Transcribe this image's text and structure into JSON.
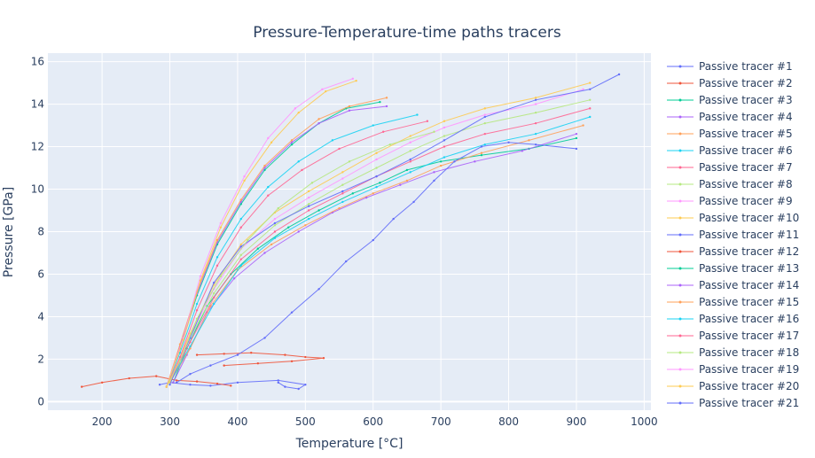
{
  "chart_data": {
    "type": "line",
    "title": "Pressure-Temperature-time paths tracers",
    "xlabel": "Temperature [°C]",
    "ylabel": "Pressure [GPa]",
    "xlim": [
      120,
      1010
    ],
    "ylim": [
      -0.4,
      16.4
    ],
    "x_ticks": [
      200,
      300,
      400,
      500,
      600,
      700,
      800,
      900,
      1000
    ],
    "y_ticks": [
      0,
      2,
      4,
      6,
      8,
      10,
      12,
      14,
      16
    ],
    "grid": true,
    "plot_bg": "#e5ecf6",
    "legend_position": "right",
    "colors": [
      "#636efa",
      "#ef553b",
      "#00cc96",
      "#ab63fa",
      "#ffa15a",
      "#19d3f3",
      "#ff6692",
      "#b6e880",
      "#ff97ff",
      "#fecb52"
    ],
    "series": [
      {
        "name": "Passive tracer #1",
        "x": [
          285,
          300,
          330,
          360,
          400,
          460,
          500,
          490,
          470,
          460
        ],
        "y": [
          0.8,
          0.9,
          0.8,
          0.75,
          0.9,
          1.0,
          0.8,
          0.6,
          0.7,
          0.9
        ]
      },
      {
        "name": "Passive tracer #2",
        "x": [
          170,
          200,
          240,
          280,
          310,
          340,
          370,
          390
        ],
        "y": [
          0.7,
          0.9,
          1.1,
          1.2,
          1.0,
          0.95,
          0.85,
          0.75
        ]
      },
      {
        "name": "Passive tracer #3",
        "x": [
          305,
          325,
          355,
          390,
          430,
          475,
          520,
          570,
          610,
          650,
          700,
          760,
          830,
          900
        ],
        "y": [
          0.9,
          2.5,
          4.5,
          6.0,
          7.2,
          8.2,
          9.0,
          9.8,
          10.3,
          10.9,
          11.3,
          11.6,
          11.9,
          12.4
        ]
      },
      {
        "name": "Passive tracer #4",
        "x": [
          305,
          325,
          355,
          395,
          440,
          490,
          540,
          590,
          640,
          690,
          750,
          820,
          900
        ],
        "y": [
          0.9,
          2.2,
          4.2,
          5.8,
          7.0,
          8.0,
          8.9,
          9.6,
          10.2,
          10.8,
          11.3,
          11.8,
          12.6
        ]
      },
      {
        "name": "Passive tracer #5",
        "x": [
          300,
          330,
          360,
          400,
          450,
          500,
          550,
          600,
          650,
          700,
          760,
          830,
          910
        ],
        "y": [
          0.9,
          2.5,
          4.5,
          6.2,
          7.4,
          8.3,
          9.1,
          9.8,
          10.4,
          11.1,
          11.7,
          12.3,
          13.0
        ]
      },
      {
        "name": "Passive tracer #6",
        "x": [
          300,
          330,
          365,
          405,
          455,
          505,
          555,
          605,
          655,
          705,
          765,
          840,
          920
        ],
        "y": [
          0.9,
          2.6,
          4.6,
          6.4,
          7.7,
          8.6,
          9.4,
          10.1,
          10.8,
          11.5,
          12.1,
          12.6,
          13.4
        ]
      },
      {
        "name": "Passive tracer #7",
        "x": [
          300,
          330,
          365,
          405,
          455,
          505,
          555,
          605,
          655,
          705,
          765,
          840,
          920
        ],
        "y": [
          0.9,
          2.8,
          4.9,
          6.7,
          8.0,
          9.0,
          9.8,
          10.6,
          11.3,
          12.0,
          12.6,
          13.1,
          13.8
        ]
      },
      {
        "name": "Passive tracer #8",
        "x": [
          300,
          330,
          365,
          405,
          455,
          505,
          555,
          605,
          655,
          705,
          765,
          840,
          920
        ],
        "y": [
          0.9,
          3.0,
          5.1,
          6.9,
          8.3,
          9.3,
          10.2,
          11.0,
          11.8,
          12.5,
          13.1,
          13.6,
          14.2
        ]
      },
      {
        "name": "Passive tracer #9",
        "x": [
          300,
          330,
          365,
          405,
          455,
          505,
          555,
          605,
          655,
          705,
          765,
          840,
          910
        ],
        "y": [
          0.9,
          3.1,
          5.3,
          7.2,
          8.6,
          9.6,
          10.5,
          11.4,
          12.2,
          12.9,
          13.5,
          14.0,
          14.7
        ]
      },
      {
        "name": "Passive tracer #10",
        "x": [
          300,
          330,
          365,
          405,
          455,
          505,
          555,
          605,
          655,
          705,
          765,
          840,
          920
        ],
        "y": [
          0.9,
          3.2,
          5.5,
          7.4,
          8.9,
          9.9,
          10.8,
          11.7,
          12.5,
          13.2,
          13.8,
          14.3,
          15.0
        ]
      },
      {
        "name": "Passive tracer #11",
        "x": [
          300,
          330,
          365,
          405,
          455,
          505,
          555,
          605,
          655,
          705,
          765,
          840,
          920,
          963
        ],
        "y": [
          0.8,
          3.0,
          5.6,
          7.3,
          8.4,
          9.2,
          9.9,
          10.6,
          11.4,
          12.3,
          13.4,
          14.2,
          14.7,
          15.4
        ]
      },
      {
        "name": "Passive tracer #12",
        "x": [
          340,
          380,
          420,
          470,
          500,
          527,
          480,
          430,
          380
        ],
        "y": [
          2.2,
          2.25,
          2.3,
          2.2,
          2.1,
          2.05,
          1.9,
          1.8,
          1.7
        ]
      },
      {
        "name": "Passive tracer #13",
        "x": [
          295,
          315,
          340,
          370,
          405,
          440,
          480,
          520,
          560,
          610
        ],
        "y": [
          0.7,
          2.5,
          5.0,
          7.4,
          9.3,
          10.9,
          12.1,
          13.1,
          13.8,
          14.1
        ]
      },
      {
        "name": "Passive tracer #14",
        "x": [
          295,
          315,
          340,
          370,
          405,
          440,
          480,
          520,
          565,
          620
        ],
        "y": [
          0.7,
          2.6,
          5.1,
          7.5,
          9.4,
          11.0,
          12.2,
          13.1,
          13.7,
          13.9
        ]
      },
      {
        "name": "Passive tracer #15",
        "x": [
          295,
          315,
          340,
          370,
          405,
          440,
          480,
          520,
          565,
          620
        ],
        "y": [
          0.7,
          2.7,
          5.2,
          7.6,
          9.5,
          11.1,
          12.3,
          13.3,
          13.9,
          14.3
        ]
      },
      {
        "name": "Passive tracer #16",
        "x": [
          295,
          315,
          340,
          370,
          405,
          445,
          490,
          540,
          600,
          665
        ],
        "y": [
          0.7,
          2.3,
          4.6,
          6.8,
          8.6,
          10.1,
          11.3,
          12.3,
          13.0,
          13.5
        ]
      },
      {
        "name": "Passive tracer #17",
        "x": [
          295,
          315,
          340,
          370,
          405,
          445,
          495,
          550,
          615,
          680
        ],
        "y": [
          0.7,
          2.1,
          4.3,
          6.4,
          8.2,
          9.7,
          10.9,
          11.9,
          12.7,
          13.2
        ]
      },
      {
        "name": "Passive tracer #18",
        "x": [
          295,
          315,
          340,
          375,
          415,
          460,
          510,
          565,
          625,
          690
        ],
        "y": [
          0.7,
          1.9,
          3.9,
          5.9,
          7.6,
          9.1,
          10.3,
          11.3,
          12.1,
          12.7
        ]
      },
      {
        "name": "Passive tracer #19",
        "x": [
          295,
          320,
          345,
          375,
          410,
          445,
          485,
          525,
          570
        ],
        "y": [
          0.7,
          3.0,
          5.9,
          8.4,
          10.6,
          12.4,
          13.8,
          14.7,
          15.2
        ]
      },
      {
        "name": "Passive tracer #20",
        "x": [
          295,
          320,
          345,
          375,
          410,
          450,
          490,
          530,
          575
        ],
        "y": [
          0.7,
          2.9,
          5.7,
          8.2,
          10.4,
          12.2,
          13.6,
          14.6,
          15.1
        ]
      },
      {
        "name": "Passive tracer #21",
        "x": [
          310,
          330,
          360,
          400,
          440,
          480,
          520,
          560,
          600,
          630,
          660,
          690,
          720,
          760,
          800,
          840,
          900
        ],
        "y": [
          0.9,
          1.3,
          1.7,
          2.2,
          3.0,
          4.2,
          5.3,
          6.6,
          7.6,
          8.6,
          9.4,
          10.4,
          11.3,
          12.0,
          12.2,
          12.1,
          11.9
        ]
      }
    ]
  }
}
